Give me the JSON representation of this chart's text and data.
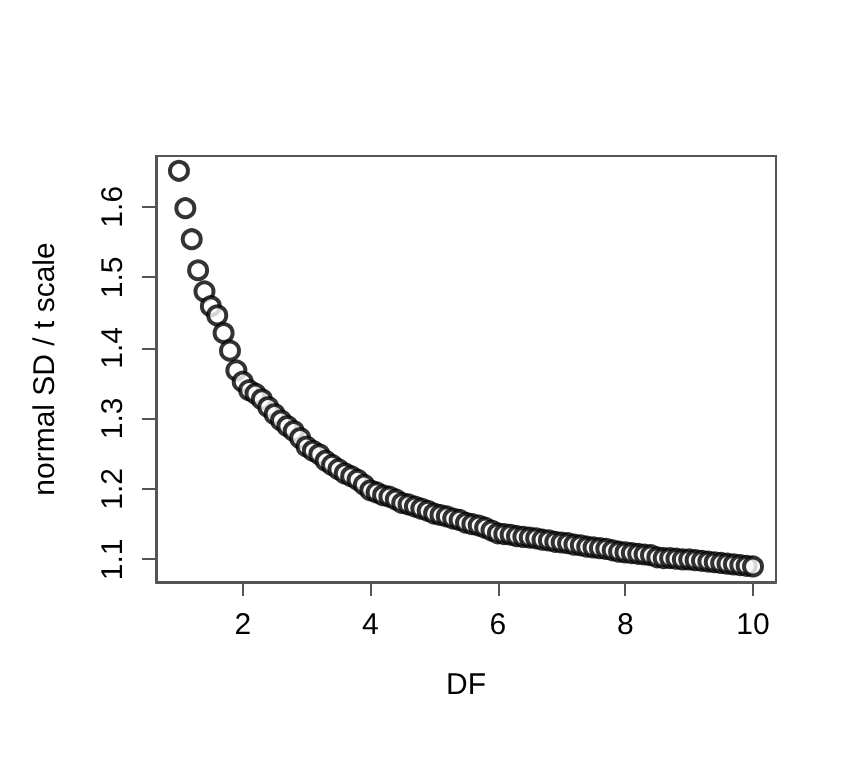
{
  "chart_data": {
    "type": "scatter",
    "xlabel": "DF",
    "ylabel": "normal SD / t scale",
    "x": [
      1,
      1.1,
      1.2,
      1.3,
      1.4,
      1.5,
      1.6,
      1.7,
      1.8,
      1.9,
      2,
      2.1,
      2.2,
      2.3,
      2.4,
      2.5,
      2.6,
      2.7,
      2.8,
      2.9,
      3,
      3.1,
      3.2,
      3.3,
      3.4,
      3.5,
      3.6,
      3.7,
      3.8,
      3.9,
      4,
      4.1,
      4.2,
      4.3,
      4.4,
      4.5,
      4.6,
      4.7,
      4.8,
      4.9,
      5,
      5.1,
      5.2,
      5.3,
      5.4,
      5.5,
      5.6,
      5.7,
      5.8,
      5.9,
      6,
      6.1,
      6.2,
      6.3,
      6.4,
      6.5,
      6.6,
      6.7,
      6.8,
      6.9,
      7,
      7.1,
      7.2,
      7.3,
      7.4,
      7.5,
      7.6,
      7.7,
      7.8,
      7.9,
      8,
      8.1,
      8.2,
      8.3,
      8.4,
      8.5,
      8.6,
      8.7,
      8.8,
      8.9,
      9,
      9.1,
      9.2,
      9.3,
      9.4,
      9.5,
      9.6,
      9.7,
      9.8,
      9.9,
      10
    ],
    "series": [
      {
        "color": "#000000",
        "values": [
          1.651,
          1.598,
          1.554,
          1.51,
          1.48,
          1.459,
          1.446,
          1.421,
          1.396,
          1.368,
          1.352,
          1.34,
          1.335,
          1.327,
          1.316,
          1.306,
          1.297,
          1.289,
          1.282,
          1.272,
          1.26,
          1.254,
          1.249,
          1.24,
          1.234,
          1.228,
          1.222,
          1.218,
          1.213,
          1.206,
          1.198,
          1.195,
          1.191,
          1.189,
          1.185,
          1.18,
          1.178,
          1.175,
          1.172,
          1.169,
          1.165,
          1.163,
          1.161,
          1.158,
          1.156,
          1.152,
          1.15,
          1.148,
          1.145,
          1.141,
          1.137,
          1.136,
          1.135,
          1.133,
          1.132,
          1.131,
          1.13,
          1.128,
          1.127,
          1.125,
          1.124,
          1.123,
          1.121,
          1.12,
          1.118,
          1.117,
          1.116,
          1.115,
          1.113,
          1.111,
          1.11,
          1.109,
          1.108,
          1.107,
          1.106,
          1.103,
          1.102,
          1.102,
          1.101,
          1.1,
          1.1,
          1.099,
          1.098,
          1.097,
          1.096,
          1.095,
          1.094,
          1.093,
          1.092,
          1.091,
          1.09
        ]
      }
    ],
    "xlim": [
      0.64,
      10.36
    ],
    "ylim": [
      1.068,
      1.672
    ],
    "xticks": [
      2,
      4,
      6,
      8,
      10
    ],
    "yticks": [
      1.1,
      1.2,
      1.3,
      1.4,
      1.5,
      1.6
    ],
    "marker": "circle",
    "grid": false
  }
}
